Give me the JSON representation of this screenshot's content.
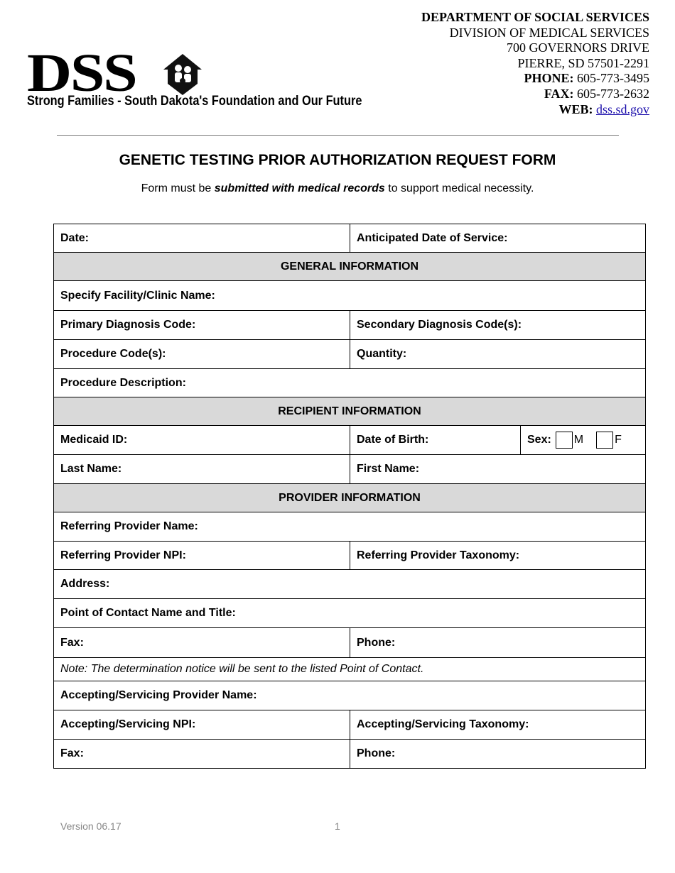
{
  "logo": {
    "letters": "DSS",
    "tagline": "Strong Families - South Dakota's Foundation and Our Future"
  },
  "header": {
    "dept": "DEPARTMENT OF SOCIAL SERVICES",
    "division": "DIVISION OF MEDICAL SERVICES",
    "street": "700 GOVERNORS DRIVE",
    "city": "PIERRE, SD 57501-2291",
    "phone_label": "PHONE:",
    "phone": "605-773-3495",
    "fax_label": "FAX:",
    "fax": "605-773-2632",
    "web_label": "WEB:",
    "web": "dss.sd.gov"
  },
  "title": "GENETIC TESTING PRIOR AUTHORIZATION REQUEST FORM",
  "subtitle": {
    "pre": "Form must be ",
    "emph": "submitted with medical records",
    "post": " to support medical necessity."
  },
  "form": {
    "date": "Date:",
    "anticipated": "Anticipated Date of Service:",
    "general": "GENERAL INFORMATION",
    "facility": "Specify Facility/Clinic Name:",
    "primary_dx": "Primary Diagnosis Code:",
    "secondary_dx": "Secondary Diagnosis Code(s):",
    "procedure_codes": "Procedure Code(s):",
    "quantity": "Quantity:",
    "procedure_desc": "Procedure Description:",
    "recipient": "RECIPIENT INFORMATION",
    "medicaid_id": "Medicaid ID:",
    "dob": "Date of Birth:",
    "sex": "Sex:",
    "sex_m": "M",
    "sex_f": "F",
    "last_name": "Last Name:",
    "first_name": "First Name:",
    "provider": "PROVIDER INFORMATION",
    "ref_name": "Referring Provider Name:",
    "ref_npi": "Referring Provider NPI:",
    "ref_tax": "Referring Provider Taxonomy:",
    "address": "Address:",
    "poc": "Point of Contact Name and Title:",
    "fax1": "Fax:",
    "phone1": "Phone:",
    "note": "Note: The determination notice will be sent to the listed Point of Contact.",
    "acc_name": "Accepting/Servicing Provider Name:",
    "acc_npi": "Accepting/Servicing NPI:",
    "acc_tax": "Accepting/Servicing Taxonomy:",
    "fax2": "Fax:",
    "phone2": "Phone:"
  },
  "footer": {
    "version": "Version 06.17",
    "page": "1"
  }
}
